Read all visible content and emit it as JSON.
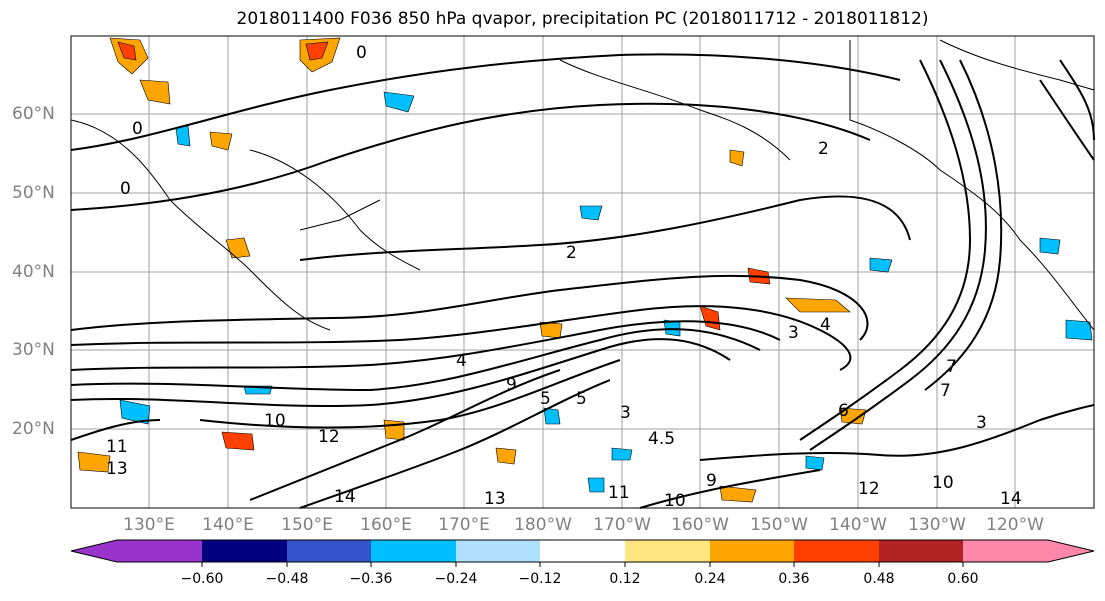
{
  "title": "2018011400 F036 850 hPa qvapor, precipitation PC (2018011712 - 2018011812)",
  "lat_labels": [
    "60°N",
    "50°N",
    "40°N",
    "30°N",
    "20°N"
  ],
  "lon_labels": [
    "130°E",
    "140°E",
    "150°E",
    "160°E",
    "170°E",
    "180°W",
    "170°W",
    "160°W",
    "150°W",
    "140°W",
    "130°W",
    "120°W"
  ],
  "contour_labels": [
    "0",
    "0",
    "0",
    "2",
    "2",
    "3",
    "3",
    "3",
    "4",
    "4",
    "4.5",
    "5",
    "6",
    "7",
    "9",
    "10",
    "10",
    "10",
    "11",
    "11",
    "12",
    "12",
    "13",
    "13",
    "14",
    "14",
    "5",
    "7",
    "9"
  ],
  "colorbar": {
    "colors": [
      "#9933cc",
      "#000080",
      "#3355cc",
      "#00bfff",
      "#b0e0ff",
      "#ffffff",
      "#ffe680",
      "#ffa500",
      "#ff4000",
      "#b22222",
      "#ff88aa"
    ],
    "tick_labels": [
      "−0.60",
      "−0.48",
      "−0.36",
      "−0.24",
      "−0.12",
      "0.12",
      "0.24",
      "0.36",
      "0.48",
      "0.60"
    ]
  },
  "colors": {
    "grid": "#a0a0a0",
    "contour": "#000000",
    "axis_label": "#808080"
  }
}
